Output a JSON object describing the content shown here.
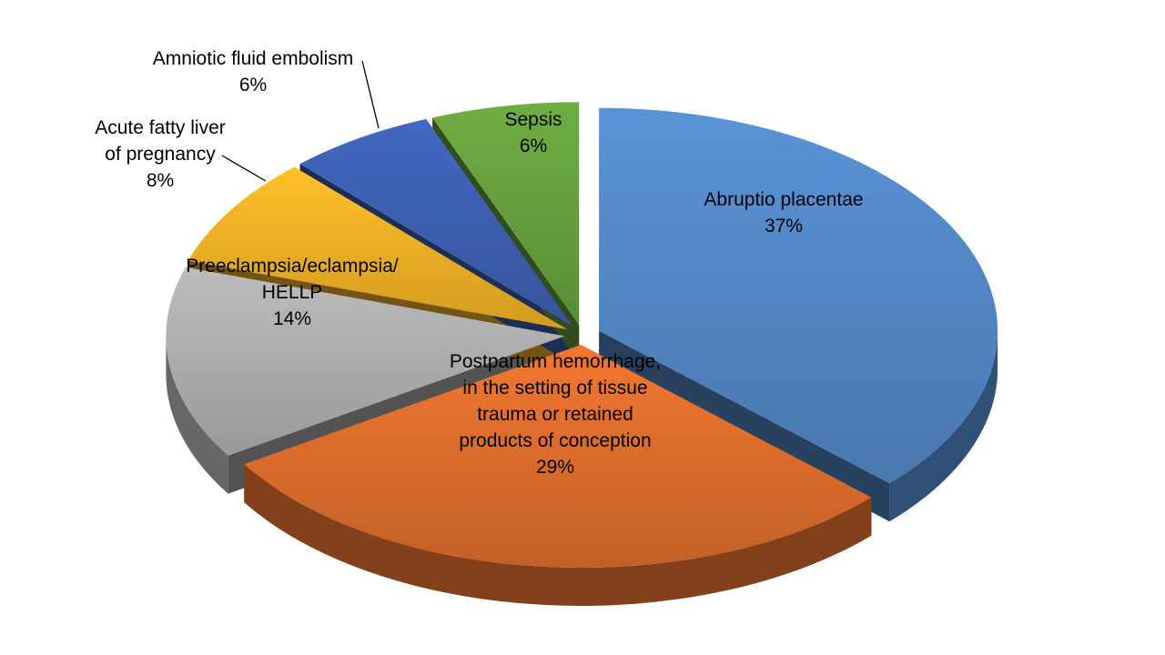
{
  "chart_data": {
    "type": "pie",
    "style": "3d-exploded-pie",
    "title": "",
    "legend_position": "none",
    "background_color": "#FFFFFF",
    "label_text_color": "#000000",
    "start_angle_deg": 0,
    "direction": "clockwise",
    "total": 100,
    "series": [
      {
        "label": "Abruptio placentae",
        "value": 37,
        "pct": "37%",
        "color": "#4F81BD",
        "label_placement": "inside",
        "label_lines": [
          "Abruptio placentae",
          "37%"
        ]
      },
      {
        "label": "Postpartum hemorrhage, in the setting of tissue trauma or retained products of conception",
        "value": 29,
        "pct": "29%",
        "color": "#D4682A",
        "label_placement": "inside",
        "label_lines": [
          "Postpartum hemorrhage,",
          "in the setting of tissue",
          "trauma or retained",
          "products of conception",
          "29%"
        ]
      },
      {
        "label": "Preeclampsia/eclampsia/HELLP",
        "value": 14,
        "pct": "14%",
        "color": "#A6A6A6",
        "label_placement": "inside",
        "label_lines": [
          "Preeclampsia/eclampsia/",
          "HELLP",
          "14%"
        ]
      },
      {
        "label": "Acute fatty liver of pregnancy",
        "value": 8,
        "pct": "8%",
        "color": "#E5A823",
        "label_placement": "outside-with-leader",
        "label_lines": [
          "Acute fatty liver",
          "of pregnancy",
          "8%"
        ]
      },
      {
        "label": "Amniotic fluid embolism",
        "value": 6,
        "pct": "6%",
        "color": "#3A5BA9",
        "label_placement": "outside-with-leader",
        "label_lines": [
          "Amniotic fluid embolism",
          "6%"
        ]
      },
      {
        "label": "Sepsis",
        "value": 6,
        "pct": "6%",
        "color": "#61993B",
        "label_placement": "inside",
        "label_lines": [
          "Sepsis",
          "6%"
        ]
      }
    ]
  }
}
